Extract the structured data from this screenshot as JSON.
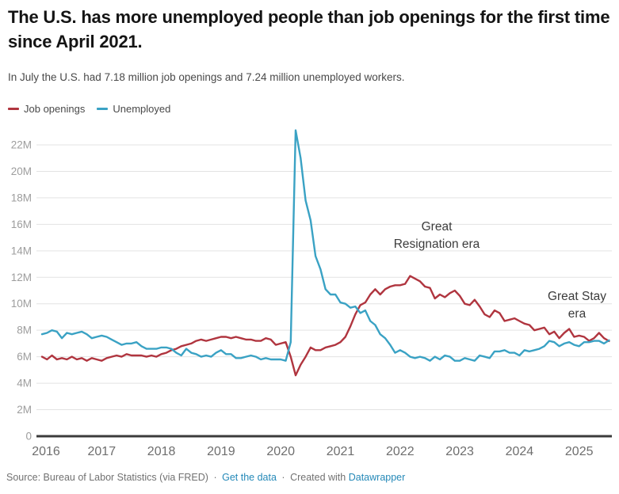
{
  "footer": {
    "source": "Source: Bureau of Labor Statistics (via FRED)",
    "separator": "·",
    "get_data_label": "Get the data",
    "created_with": "Created with",
    "datawrapper_label": "Datawrapper"
  },
  "colors": {
    "job_openings": "#b0353f",
    "unemployed": "#3aa2c4",
    "grid": "#e3e3e3",
    "axis_baseline": "#3b3b3b",
    "y_label": "#9d9d9d",
    "x_label": "#6e6e6e",
    "link": "#2589b8"
  },
  "chart_data": {
    "type": "line",
    "title": "The U.S. has more unemployed people than job openings for the first time since April 2021.",
    "subtitle": "In July the U.S. had 7.18 million job openings and 7.24 million unemployed workers.",
    "x_unit": "month",
    "x_range": [
      "2016-01",
      "2025-07"
    ],
    "x_tick_labels": [
      "2016",
      "2017",
      "2018",
      "2019",
      "2020",
      "2021",
      "2022",
      "2023",
      "2024",
      "2025"
    ],
    "y_tick_labels": [
      "0",
      "2M",
      "4M",
      "6M",
      "8M",
      "10M",
      "12M",
      "14M",
      "16M",
      "18M",
      "20M",
      "22M"
    ],
    "y_tick_values": [
      0,
      2,
      4,
      6,
      8,
      10,
      12,
      14,
      16,
      18,
      20,
      22
    ],
    "ylim": [
      0,
      23.5
    ],
    "grid": true,
    "legend_position": "top-left",
    "unit": "millions of people",
    "series": [
      {
        "name": "Job openings",
        "color": "#b0353f",
        "values": [
          6.0,
          5.8,
          6.1,
          5.8,
          5.9,
          5.8,
          6.0,
          5.8,
          5.9,
          5.7,
          5.9,
          5.8,
          5.7,
          5.9,
          6.0,
          6.1,
          6.0,
          6.2,
          6.1,
          6.1,
          6.1,
          6.0,
          6.1,
          6.0,
          6.2,
          6.3,
          6.5,
          6.6,
          6.8,
          6.9,
          7.0,
          7.2,
          7.3,
          7.2,
          7.3,
          7.4,
          7.5,
          7.5,
          7.4,
          7.5,
          7.4,
          7.3,
          7.3,
          7.2,
          7.2,
          7.4,
          7.3,
          6.9,
          7.0,
          7.1,
          6.0,
          4.6,
          5.4,
          6.0,
          6.7,
          6.5,
          6.5,
          6.7,
          6.8,
          6.9,
          7.1,
          7.5,
          8.3,
          9.2,
          9.9,
          10.1,
          10.7,
          11.1,
          10.7,
          11.1,
          11.3,
          11.4,
          11.4,
          11.5,
          12.1,
          11.9,
          11.7,
          11.3,
          11.2,
          10.4,
          10.7,
          10.5,
          10.8,
          11.0,
          10.6,
          10.0,
          9.9,
          10.3,
          9.8,
          9.2,
          9.0,
          9.5,
          9.3,
          8.7,
          8.8,
          8.9,
          8.7,
          8.5,
          8.4,
          8.0,
          8.1,
          8.2,
          7.7,
          7.9,
          7.4,
          7.8,
          8.1,
          7.5,
          7.6,
          7.5,
          7.2,
          7.4,
          7.8,
          7.4,
          7.18
        ]
      },
      {
        "name": "Unemployed",
        "color": "#3aa2c4",
        "values": [
          7.7,
          7.8,
          8.0,
          7.9,
          7.4,
          7.8,
          7.7,
          7.8,
          7.9,
          7.7,
          7.4,
          7.5,
          7.6,
          7.5,
          7.3,
          7.1,
          6.9,
          7.0,
          7.0,
          7.1,
          6.8,
          6.6,
          6.6,
          6.6,
          6.7,
          6.7,
          6.6,
          6.3,
          6.1,
          6.6,
          6.3,
          6.2,
          6.0,
          6.1,
          6.0,
          6.3,
          6.5,
          6.2,
          6.2,
          5.9,
          5.9,
          6.0,
          6.1,
          6.0,
          5.8,
          5.9,
          5.8,
          5.8,
          5.8,
          5.7,
          7.1,
          23.1,
          21.0,
          17.8,
          16.3,
          13.6,
          12.6,
          11.1,
          10.7,
          10.7,
          10.1,
          10.0,
          9.7,
          9.8,
          9.3,
          9.5,
          8.7,
          8.4,
          7.7,
          7.4,
          6.9,
          6.3,
          6.5,
          6.3,
          6.0,
          5.9,
          6.0,
          5.9,
          5.7,
          6.0,
          5.8,
          6.1,
          6.0,
          5.7,
          5.7,
          5.9,
          5.8,
          5.7,
          6.1,
          6.0,
          5.9,
          6.4,
          6.4,
          6.5,
          6.3,
          6.3,
          6.1,
          6.5,
          6.4,
          6.5,
          6.6,
          6.8,
          7.2,
          7.1,
          6.8,
          7.0,
          7.1,
          6.9,
          6.8,
          7.1,
          7.1,
          7.2,
          7.2,
          7.0,
          7.24
        ]
      }
    ],
    "annotations": [
      {
        "text": "Great\nResignation era"
      },
      {
        "text": "Great Stay\nera"
      }
    ]
  }
}
